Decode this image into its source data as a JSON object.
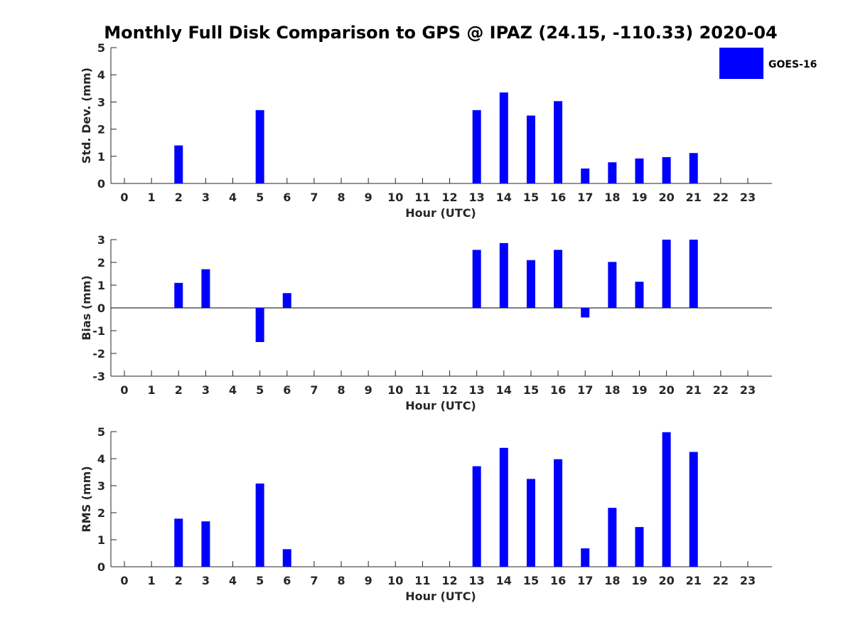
{
  "title": "Monthly Full Disk Comparison to GPS @ IPAZ (24.15, -110.33) 2020-04",
  "legend": {
    "label": "GOES-16",
    "color": "#0000ff"
  },
  "chart_data": [
    {
      "type": "bar",
      "name": "std-dev",
      "title": "Monthly Full Disk Comparison to GPS @ IPAZ (24.15, -110.33) 2020-04",
      "xlabel": "Hour (UTC)",
      "ylabel": "Std. Dev. (mm)",
      "ylim": [
        0,
        5
      ],
      "yticks": [
        0,
        1,
        2,
        3,
        4,
        5
      ],
      "categories": [
        "0",
        "1",
        "2",
        "3",
        "4",
        "5",
        "6",
        "7",
        "8",
        "9",
        "10",
        "11",
        "12",
        "13",
        "14",
        "15",
        "16",
        "17",
        "18",
        "19",
        "20",
        "21",
        "22",
        "23"
      ],
      "series": [
        {
          "name": "GOES-16",
          "color": "#0000ff",
          "values": [
            null,
            null,
            1.4,
            null,
            null,
            2.7,
            null,
            null,
            null,
            null,
            null,
            null,
            null,
            2.7,
            3.35,
            2.5,
            3.03,
            0.55,
            0.78,
            0.92,
            0.97,
            1.12,
            null,
            null
          ]
        }
      ]
    },
    {
      "type": "bar",
      "name": "bias",
      "xlabel": "Hour (UTC)",
      "ylabel": "Bias (mm)",
      "ylim": [
        -3,
        3
      ],
      "yticks": [
        -3,
        -2,
        -1,
        0,
        1,
        2,
        3
      ],
      "zero_line": true,
      "categories": [
        "0",
        "1",
        "2",
        "3",
        "4",
        "5",
        "6",
        "7",
        "8",
        "9",
        "10",
        "11",
        "12",
        "13",
        "14",
        "15",
        "16",
        "17",
        "18",
        "19",
        "20",
        "21",
        "22",
        "23"
      ],
      "series": [
        {
          "name": "GOES-16",
          "color": "#0000ff",
          "values": [
            null,
            null,
            1.1,
            1.7,
            null,
            -1.5,
            0.65,
            null,
            null,
            null,
            null,
            null,
            null,
            2.55,
            2.85,
            2.1,
            2.55,
            -0.42,
            2.02,
            1.15,
            3.0,
            3.0,
            null,
            null
          ]
        }
      ]
    },
    {
      "type": "bar",
      "name": "rms",
      "xlabel": "Hour (UTC)",
      "ylabel": "RMS (mm)",
      "ylim": [
        0,
        5
      ],
      "yticks": [
        0,
        1,
        2,
        3,
        4,
        5
      ],
      "categories": [
        "0",
        "1",
        "2",
        "3",
        "4",
        "5",
        "6",
        "7",
        "8",
        "9",
        "10",
        "11",
        "12",
        "13",
        "14",
        "15",
        "16",
        "17",
        "18",
        "19",
        "20",
        "21",
        "22",
        "23"
      ],
      "series": [
        {
          "name": "GOES-16",
          "color": "#0000ff",
          "values": [
            null,
            null,
            1.78,
            1.68,
            null,
            3.08,
            0.65,
            null,
            null,
            null,
            null,
            null,
            null,
            3.72,
            4.4,
            3.25,
            3.98,
            0.68,
            2.18,
            1.47,
            4.98,
            4.25,
            null,
            null
          ]
        }
      ]
    }
  ]
}
